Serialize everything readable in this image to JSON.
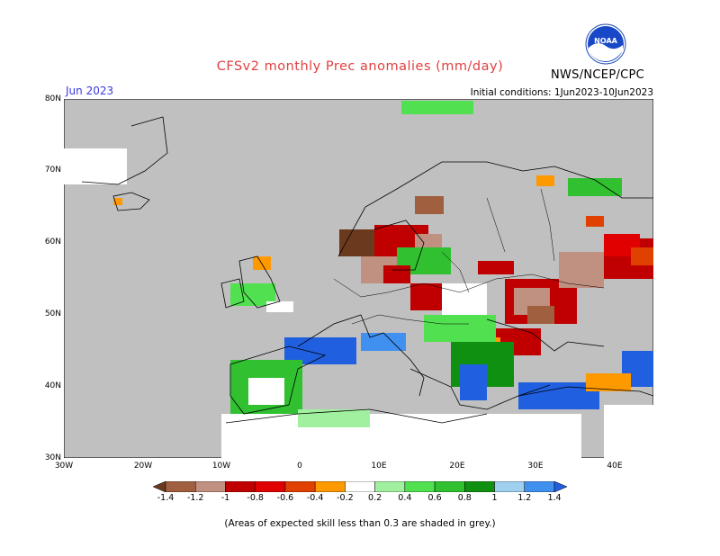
{
  "header": {
    "title": "CFSv2 monthly Prec anomalies (mm/day)",
    "org": "NWS/NCEP/CPC",
    "month": "Jun 2023",
    "initial_conditions": "Initial conditions: 1Jun2023-10Jun2023",
    "logo_text": "NOAA"
  },
  "map": {
    "lat_labels": [
      "80N",
      "70N",
      "60N",
      "50N",
      "40N",
      "30N"
    ],
    "lon_labels": [
      "30W",
      "20W",
      "10W",
      "0",
      "10E",
      "20E",
      "30E",
      "40E"
    ],
    "lat_range": [
      30,
      80
    ],
    "lon_range": [
      -30,
      45
    ],
    "land_color": "#c0c0c0",
    "ocean_color": "#c0c0c0",
    "coast_color": "#000000"
  },
  "colorbar": {
    "labels": [
      "-1.4",
      "-1.2",
      "-1",
      "-0.8",
      "-0.6",
      "-0.4",
      "-0.2",
      "0.2",
      "0.4",
      "0.6",
      "0.8",
      "1",
      "1.2",
      "1.4"
    ],
    "colors": [
      "#6b3a1e",
      "#a06040",
      "#c09080",
      "#c00000",
      "#e00000",
      "#e04000",
      "#ff9900",
      "#ffffff",
      "#a0f0a0",
      "#50e050",
      "#30c030",
      "#109010",
      "#a0d0f0",
      "#4090f0",
      "#2060e0"
    ]
  },
  "footer": {
    "note": "(Areas of expected skill less than 0.3 are shaded in grey.)"
  }
}
